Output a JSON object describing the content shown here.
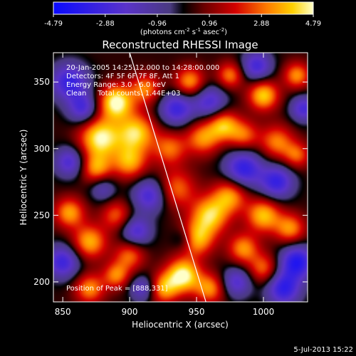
{
  "chart_data": {
    "type": "heatmap",
    "title": "Reconstructed RHESSI Image",
    "xlabel": "Heliocentric X (arcsec)",
    "ylabel": "Heliocentric Y (arcsec)",
    "xlim": [
      843,
      1033
    ],
    "ylim": [
      185,
      372
    ],
    "x_ticks": [
      850,
      900,
      950,
      1000
    ],
    "y_ticks": [
      200,
      250,
      300,
      350
    ],
    "colorbar": {
      "range": [
        -4.79,
        4.79
      ],
      "ticks": [
        "-4.79",
        "-2.88",
        "-0.96",
        "0.96",
        "2.88",
        "4.79"
      ],
      "label_main": "(photons cm",
      "label_exp1": "-2",
      "label_mid1": " s",
      "label_exp2": "-1",
      "label_mid2": " asec",
      "label_exp3": "-2",
      "label_end": ")"
    },
    "info_lines": [
      "20-Jan-2005 14:25:12.000 to 14:28:00.000",
      "Detectors: 4F 5F 6F 7F 8F, Att 1",
      "Energy Range: 3.0 - 6.0 keV",
      "Clean     Total counts: 1.44E+03"
    ],
    "peak_text": "Position of Peak = [888,331]",
    "peak": [
      888,
      331
    ],
    "limb_line": [
      [
        900,
        372
      ],
      [
        957,
        185
      ]
    ],
    "blobs": [
      {
        "x": 890,
        "y": 335,
        "v": 4.6,
        "s": 9
      },
      {
        "x": 878,
        "y": 308,
        "v": 4.4,
        "s": 11
      },
      {
        "x": 905,
        "y": 312,
        "v": 3.8,
        "s": 10
      },
      {
        "x": 900,
        "y": 290,
        "v": 3.2,
        "s": 9
      },
      {
        "x": 875,
        "y": 285,
        "v": 3.0,
        "s": 8
      },
      {
        "x": 912,
        "y": 345,
        "v": 2.8,
        "s": 8
      },
      {
        "x": 930,
        "y": 300,
        "v": 2.6,
        "s": 9
      },
      {
        "x": 955,
        "y": 308,
        "v": 3.0,
        "s": 9
      },
      {
        "x": 970,
        "y": 318,
        "v": 3.4,
        "s": 8
      },
      {
        "x": 985,
        "y": 310,
        "v": 2.6,
        "s": 8
      },
      {
        "x": 1010,
        "y": 305,
        "v": 2.8,
        "s": 9
      },
      {
        "x": 1025,
        "y": 295,
        "v": 2.4,
        "s": 7
      },
      {
        "x": 945,
        "y": 350,
        "v": 3.2,
        "s": 8
      },
      {
        "x": 975,
        "y": 355,
        "v": 2.8,
        "s": 7
      },
      {
        "x": 1000,
        "y": 340,
        "v": 3.8,
        "s": 8
      },
      {
        "x": 1025,
        "y": 355,
        "v": 3.0,
        "s": 7
      },
      {
        "x": 935,
        "y": 270,
        "v": 2.6,
        "s": 10
      },
      {
        "x": 960,
        "y": 250,
        "v": 3.8,
        "s": 10
      },
      {
        "x": 950,
        "y": 232,
        "v": 3.4,
        "s": 9
      },
      {
        "x": 975,
        "y": 265,
        "v": 3.2,
        "s": 9
      },
      {
        "x": 1000,
        "y": 250,
        "v": 3.6,
        "s": 9
      },
      {
        "x": 1020,
        "y": 240,
        "v": 3.0,
        "s": 8
      },
      {
        "x": 855,
        "y": 252,
        "v": 3.2,
        "s": 8
      },
      {
        "x": 870,
        "y": 230,
        "v": 3.4,
        "s": 9
      },
      {
        "x": 890,
        "y": 250,
        "v": 2.4,
        "s": 8
      },
      {
        "x": 900,
        "y": 220,
        "v": 2.6,
        "s": 8
      },
      {
        "x": 940,
        "y": 205,
        "v": 4.5,
        "s": 9
      },
      {
        "x": 960,
        "y": 195,
        "v": 3.0,
        "s": 8
      },
      {
        "x": 925,
        "y": 195,
        "v": 3.2,
        "s": 8
      },
      {
        "x": 985,
        "y": 225,
        "v": 3.0,
        "s": 8
      },
      {
        "x": 1000,
        "y": 210,
        "v": 2.6,
        "s": 8
      },
      {
        "x": 870,
        "y": 195,
        "v": 3.0,
        "s": 8
      },
      {
        "x": 890,
        "y": 205,
        "v": 2.8,
        "s": 7
      },
      {
        "x": 855,
        "y": 350,
        "v": -3.6,
        "s": 10
      },
      {
        "x": 865,
        "y": 330,
        "v": -3.0,
        "s": 8
      },
      {
        "x": 935,
        "y": 330,
        "v": -3.4,
        "s": 9
      },
      {
        "x": 960,
        "y": 335,
        "v": -3.0,
        "s": 9
      },
      {
        "x": 995,
        "y": 362,
        "v": -3.2,
        "s": 8
      },
      {
        "x": 1030,
        "y": 330,
        "v": -3.0,
        "s": 7
      },
      {
        "x": 985,
        "y": 285,
        "v": -3.8,
        "s": 10
      },
      {
        "x": 1010,
        "y": 275,
        "v": -3.6,
        "s": 9
      },
      {
        "x": 855,
        "y": 290,
        "v": -3.0,
        "s": 8
      },
      {
        "x": 915,
        "y": 265,
        "v": -3.2,
        "s": 9
      },
      {
        "x": 905,
        "y": 238,
        "v": -3.0,
        "s": 8
      },
      {
        "x": 850,
        "y": 215,
        "v": -3.4,
        "s": 9
      },
      {
        "x": 1025,
        "y": 215,
        "v": -4.2,
        "s": 9
      },
      {
        "x": 1015,
        "y": 195,
        "v": -3.8,
        "s": 9
      },
      {
        "x": 980,
        "y": 200,
        "v": -2.8,
        "s": 8
      },
      {
        "x": 910,
        "y": 195,
        "v": -2.6,
        "s": 7
      },
      {
        "x": 940,
        "y": 232,
        "v": -1.6,
        "s": 6
      },
      {
        "x": 880,
        "y": 270,
        "v": -2.0,
        "s": 7
      }
    ]
  },
  "timestamp": "5-Jul-2013 15:22"
}
